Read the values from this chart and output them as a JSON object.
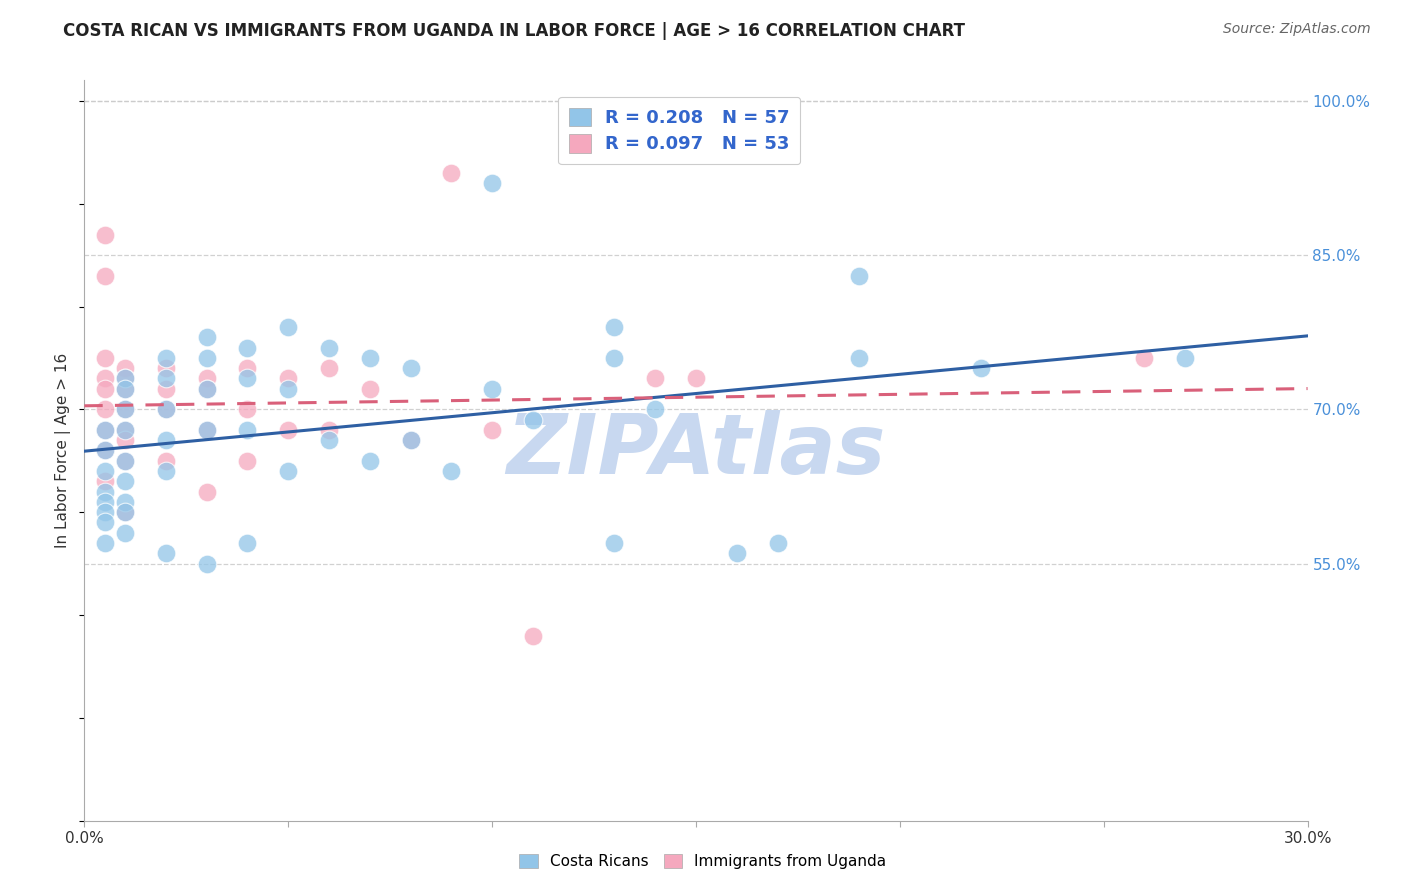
{
  "title": "COSTA RICAN VS IMMIGRANTS FROM UGANDA IN LABOR FORCE | AGE > 16 CORRELATION CHART",
  "source": "Source: ZipAtlas.com",
  "ylabel": "In Labor Force | Age > 16",
  "xlim": [
    0.0,
    0.3
  ],
  "ylim": [
    0.3,
    1.02
  ],
  "yticks": [
    0.55,
    0.7,
    0.85,
    1.0
  ],
  "ytick_labels": [
    "55.0%",
    "70.0%",
    "85.0%",
    "100.0%"
  ],
  "grid_yticks": [
    0.55,
    0.7,
    0.85,
    1.0
  ],
  "xticks": [
    0.0,
    0.05,
    0.1,
    0.15,
    0.2,
    0.25,
    0.3
  ],
  "xtick_labels": [
    "0.0%",
    "",
    "",
    "",
    "",
    "",
    "30.0%"
  ],
  "blue_R": 0.208,
  "blue_N": 57,
  "pink_R": 0.097,
  "pink_N": 53,
  "blue_color": "#92C5E8",
  "pink_color": "#F5A8BE",
  "blue_line_color": "#2E5FA3",
  "pink_line_color": "#D9607A",
  "legend_text_color": "#3366CC",
  "watermark": "ZIPAtlas",
  "blue_scatter_x": [
    0.005,
    0.005,
    0.005,
    0.005,
    0.005,
    0.005,
    0.005,
    0.005,
    0.01,
    0.01,
    0.01,
    0.01,
    0.01,
    0.01,
    0.01,
    0.01,
    0.01,
    0.02,
    0.02,
    0.02,
    0.02,
    0.02,
    0.02,
    0.03,
    0.03,
    0.03,
    0.03,
    0.03,
    0.04,
    0.04,
    0.04,
    0.04,
    0.05,
    0.05,
    0.05,
    0.06,
    0.06,
    0.07,
    0.07,
    0.08,
    0.08,
    0.09,
    0.1,
    0.1,
    0.11,
    0.13,
    0.13,
    0.13,
    0.14,
    0.16,
    0.17,
    0.19,
    0.19,
    0.22,
    0.27
  ],
  "blue_scatter_y": [
    0.68,
    0.66,
    0.64,
    0.62,
    0.61,
    0.6,
    0.59,
    0.57,
    0.73,
    0.72,
    0.7,
    0.68,
    0.65,
    0.63,
    0.61,
    0.6,
    0.58,
    0.75,
    0.73,
    0.7,
    0.67,
    0.64,
    0.56,
    0.77,
    0.75,
    0.72,
    0.68,
    0.55,
    0.76,
    0.73,
    0.68,
    0.57,
    0.78,
    0.72,
    0.64,
    0.76,
    0.67,
    0.75,
    0.65,
    0.74,
    0.67,
    0.64,
    0.92,
    0.72,
    0.69,
    0.78,
    0.75,
    0.57,
    0.7,
    0.56,
    0.57,
    0.83,
    0.75,
    0.74,
    0.75
  ],
  "pink_scatter_x": [
    0.005,
    0.005,
    0.005,
    0.005,
    0.005,
    0.005,
    0.005,
    0.005,
    0.005,
    0.01,
    0.01,
    0.01,
    0.01,
    0.01,
    0.01,
    0.01,
    0.01,
    0.02,
    0.02,
    0.02,
    0.02,
    0.03,
    0.03,
    0.03,
    0.03,
    0.04,
    0.04,
    0.04,
    0.05,
    0.05,
    0.06,
    0.06,
    0.07,
    0.08,
    0.09,
    0.1,
    0.11,
    0.14,
    0.15,
    0.26
  ],
  "pink_scatter_y": [
    0.87,
    0.83,
    0.75,
    0.73,
    0.72,
    0.7,
    0.68,
    0.66,
    0.63,
    0.74,
    0.73,
    0.72,
    0.7,
    0.68,
    0.67,
    0.65,
    0.6,
    0.74,
    0.72,
    0.7,
    0.65,
    0.73,
    0.72,
    0.68,
    0.62,
    0.74,
    0.7,
    0.65,
    0.73,
    0.68,
    0.74,
    0.68,
    0.72,
    0.67,
    0.93,
    0.68,
    0.48,
    0.73,
    0.73,
    0.75
  ],
  "title_fontsize": 12,
  "axis_tick_fontsize": 11,
  "legend_fontsize": 13,
  "ylabel_fontsize": 11,
  "source_fontsize": 10,
  "background_color": "#FFFFFF",
  "grid_color": "#CCCCCC",
  "right_tick_color": "#4A90D9",
  "watermark_color": "#C8D8F0",
  "watermark_fontsize": 60
}
